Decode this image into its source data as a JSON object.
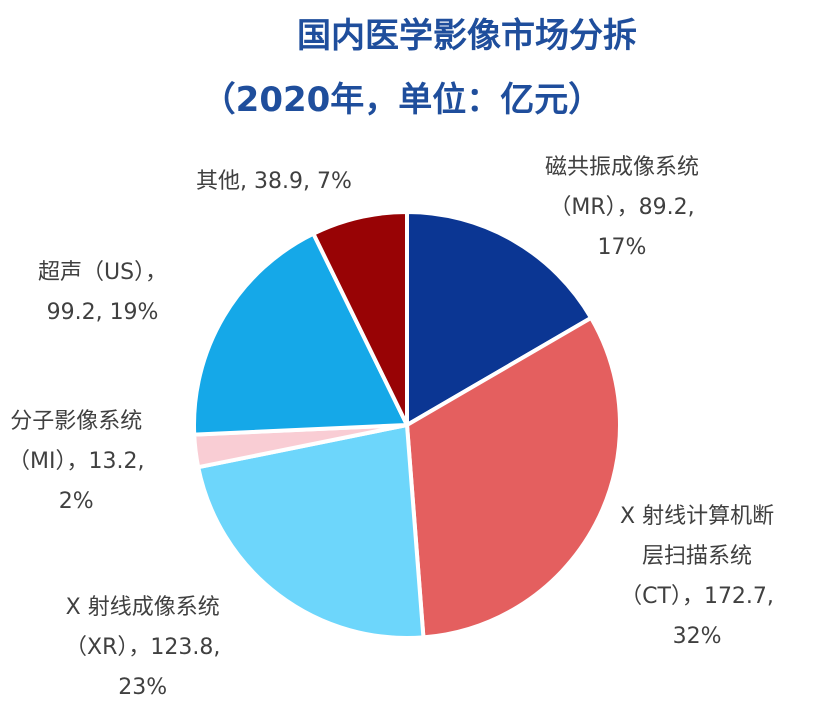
{
  "title_line1": "国内医学影像市场分拆",
  "title_line2": "（2020年，单位：亿元）",
  "colors": {
    "title": "#1f4e9c",
    "label": "#404040"
  },
  "chart_data": {
    "type": "pie",
    "title": "国内医学影像市场分拆（2020年，单位：亿元）",
    "unit": "亿元",
    "start": "12 o'clock, clockwise",
    "slices": [
      {
        "name": "磁共振成像系统（MR）",
        "value": 89.2,
        "percent": 17,
        "color": "#0b3693",
        "label_lines": [
          "磁共振成像系统",
          "（MR），89.2,",
          "17%"
        ]
      },
      {
        "name": "X射线计算机断层扫描系统（CT）",
        "value": 172.7,
        "percent": 32,
        "color": "#e45f5f",
        "label_lines": [
          "X 射线计算机断",
          "层扫描系统",
          "（CT），172.7,",
          "32%"
        ]
      },
      {
        "name": "X射线成像系统（XR）",
        "value": 123.8,
        "percent": 23,
        "color": "#6dd6fb",
        "label_lines": [
          "X 射线成像系统",
          "（XR），123.8,",
          "23%"
        ]
      },
      {
        "name": "分子影像系统（MI）",
        "value": 13.2,
        "percent": 2,
        "color": "#f9cdd4",
        "label_lines": [
          "分子影像系统",
          "（MI），13.2,",
          "2%"
        ]
      },
      {
        "name": "超声（US）",
        "value": 99.2,
        "percent": 19,
        "color": "#15a8e8",
        "label_lines": [
          "超声（US），",
          "99.2, 19%"
        ]
      },
      {
        "name": "其他",
        "value": 38.9,
        "percent": 7,
        "color": "#980305",
        "label_lines": [
          "其他, 38.9, 7%"
        ]
      }
    ]
  }
}
